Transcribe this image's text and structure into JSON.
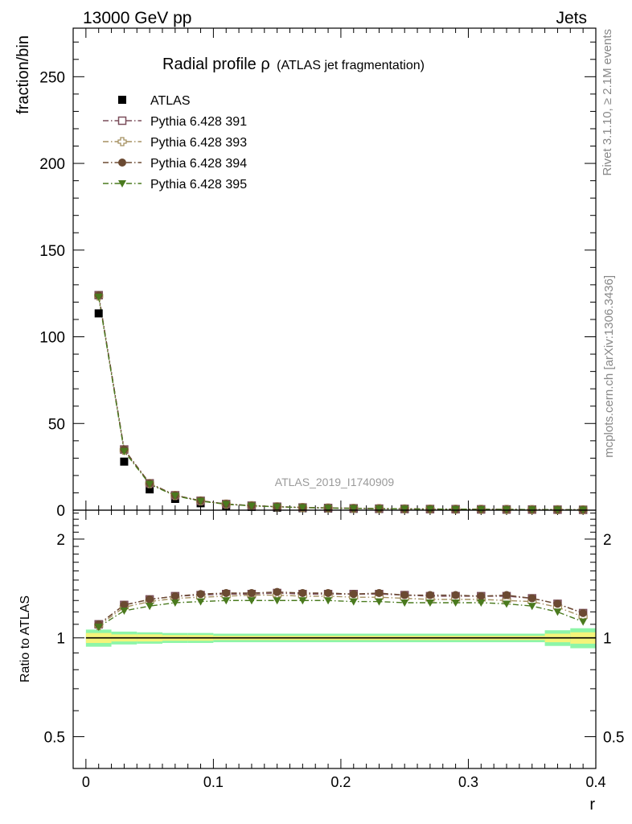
{
  "header": {
    "left": "13000 GeV pp",
    "right": "Jets"
  },
  "side_labels": {
    "rivet": "Rivet 3.1.10, ≥ 2.1M events",
    "mcplots": "mcplots.cern.ch [arXiv:1306.3436]"
  },
  "chart_data": [
    {
      "type": "line",
      "title": "Radial profile ρ",
      "subtitle": "(ATLAS jet fragmentation)",
      "watermark": "ATLAS_2019_I1740909",
      "ylabel": "fraction/bin",
      "xlabel": "r",
      "xlim": [
        -0.01,
        0.4
      ],
      "ylim": [
        0,
        278
      ],
      "yticks": [
        0,
        50,
        100,
        150,
        200,
        250
      ],
      "xticks": [
        "0",
        "0.1",
        "0.2",
        "0.3",
        "0.4"
      ],
      "x": [
        0.01,
        0.03,
        0.05,
        0.07,
        0.09,
        0.11,
        0.13,
        0.15,
        0.17,
        0.19,
        0.21,
        0.23,
        0.25,
        0.27,
        0.29,
        0.31,
        0.33,
        0.35,
        0.37,
        0.39
      ],
      "series": [
        {
          "name": "ATLAS",
          "marker": "filled-square",
          "color": "#000000",
          "linestyle": "none",
          "values": [
            113.5,
            28.0,
            12.0,
            6.5,
            4.0,
            2.6,
            1.9,
            1.45,
            1.15,
            0.95,
            0.8,
            0.68,
            0.58,
            0.5,
            0.44,
            0.38,
            0.33,
            0.28,
            0.24,
            0.2
          ]
        },
        {
          "name": "Pythia 6.428 391",
          "marker": "open-square",
          "color": "#7a4d5a",
          "linestyle": "dash-dot",
          "values": [
            124.0,
            35.0,
            15.5,
            8.6,
            5.4,
            3.55,
            2.6,
            2.0,
            1.55,
            1.28,
            1.07,
            0.9,
            0.77,
            0.66,
            0.58,
            0.5,
            0.44,
            0.37,
            0.3,
            0.23
          ]
        },
        {
          "name": "Pythia 6.428 393",
          "marker": "open-cross",
          "color": "#a59060",
          "linestyle": "dash-dot",
          "values": [
            123.5,
            34.6,
            15.3,
            8.5,
            5.35,
            3.5,
            2.58,
            1.98,
            1.54,
            1.27,
            1.06,
            0.89,
            0.76,
            0.65,
            0.57,
            0.49,
            0.43,
            0.36,
            0.3,
            0.23
          ]
        },
        {
          "name": "Pythia 6.428 394",
          "marker": "filled-circle",
          "color": "#6b4a32",
          "linestyle": "dash-dot",
          "values": [
            124.0,
            35.0,
            15.5,
            8.6,
            5.45,
            3.57,
            2.61,
            2.01,
            1.56,
            1.29,
            1.08,
            0.91,
            0.77,
            0.66,
            0.58,
            0.5,
            0.44,
            0.37,
            0.3,
            0.23
          ]
        },
        {
          "name": "Pythia 6.428 395",
          "marker": "filled-triangle-down",
          "color": "#4a7a1e",
          "linestyle": "dash-dot",
          "values": [
            123.0,
            34.0,
            15.0,
            8.3,
            5.2,
            3.4,
            2.5,
            1.92,
            1.49,
            1.23,
            1.03,
            0.87,
            0.74,
            0.63,
            0.55,
            0.48,
            0.42,
            0.35,
            0.29,
            0.22
          ]
        }
      ]
    },
    {
      "type": "line",
      "ylabel": "Ratio to ATLAS",
      "xlabel": "r",
      "yscale": "log",
      "ylim": [
        0.4,
        2.45
      ],
      "yticks": [
        "0.5",
        "1",
        "2"
      ],
      "reference_band": {
        "edges": [
          0.0,
          0.02,
          0.04,
          0.06,
          0.08,
          0.1,
          0.36,
          0.38,
          0.4
        ],
        "inner": [
          0.035,
          0.025,
          0.025,
          0.02,
          0.02,
          0.015,
          0.03,
          0.04
        ],
        "outer": [
          0.06,
          0.045,
          0.04,
          0.035,
          0.035,
          0.03,
          0.055,
          0.07
        ],
        "inner_color": "#f4f47a",
        "outer_color": "#8df5a8"
      },
      "series": [
        {
          "name": "Pythia 6.428 391",
          "color": "#7a4d5a",
          "values": [
            1.1,
            1.26,
            1.31,
            1.34,
            1.35,
            1.36,
            1.36,
            1.37,
            1.36,
            1.36,
            1.36,
            1.36,
            1.35,
            1.34,
            1.34,
            1.34,
            1.34,
            1.32,
            1.27,
            1.19
          ]
        },
        {
          "name": "Pythia 6.428 393",
          "color": "#a59060",
          "values": [
            1.09,
            1.24,
            1.29,
            1.32,
            1.33,
            1.34,
            1.35,
            1.35,
            1.34,
            1.34,
            1.33,
            1.33,
            1.32,
            1.31,
            1.31,
            1.31,
            1.3,
            1.29,
            1.24,
            1.16
          ]
        },
        {
          "name": "Pythia 6.428 394",
          "color": "#6b4a32",
          "values": [
            1.1,
            1.26,
            1.31,
            1.34,
            1.36,
            1.37,
            1.37,
            1.38,
            1.37,
            1.37,
            1.36,
            1.37,
            1.35,
            1.35,
            1.35,
            1.34,
            1.35,
            1.32,
            1.27,
            1.19
          ]
        },
        {
          "name": "Pythia 6.428 395",
          "color": "#4a7a1e",
          "values": [
            1.08,
            1.21,
            1.25,
            1.28,
            1.29,
            1.3,
            1.3,
            1.3,
            1.3,
            1.3,
            1.29,
            1.29,
            1.28,
            1.28,
            1.28,
            1.28,
            1.27,
            1.25,
            1.2,
            1.12
          ]
        }
      ]
    }
  ]
}
